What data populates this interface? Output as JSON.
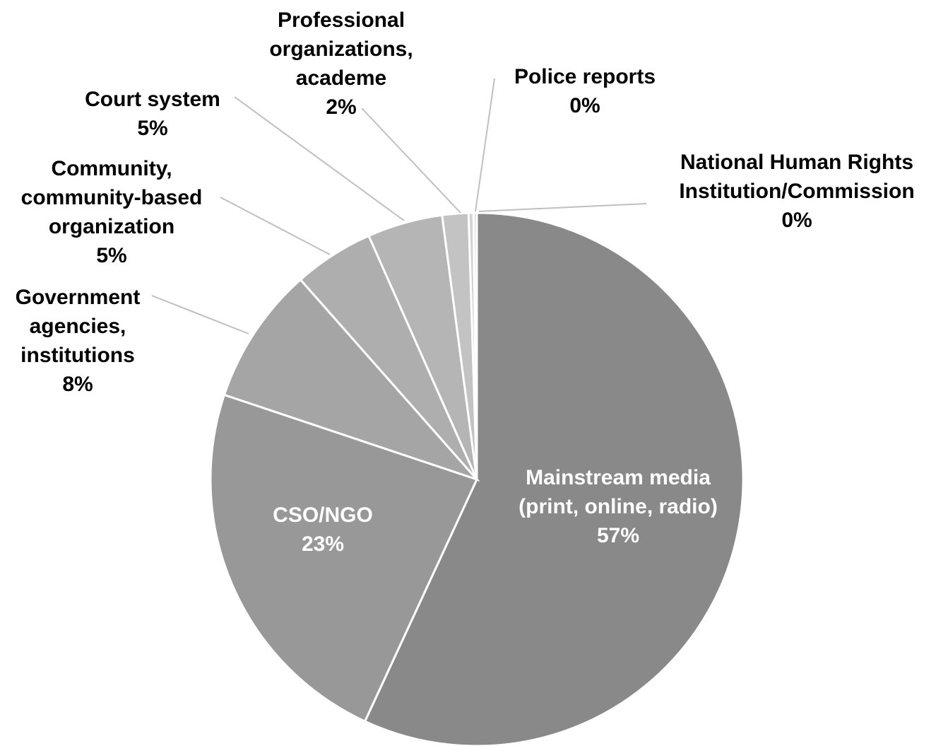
{
  "chart_data": {
    "type": "pie",
    "start_angle_deg": 0,
    "direction": "clockwise",
    "legend": "none",
    "slices": [
      {
        "key": "mainstream",
        "lines": [
          "Mainstream media",
          "(print, online, radio)"
        ],
        "percent_label": "57%",
        "value": 57.3,
        "color": "#898989"
      },
      {
        "key": "cso",
        "lines": [
          "CSO/NGO"
        ],
        "percent_label": "23%",
        "value": 23.4,
        "color": "#989898"
      },
      {
        "key": "government",
        "lines": [
          "Government",
          "agencies,",
          "institutions"
        ],
        "percent_label": "8%",
        "value": 8.4,
        "color": "#a5a5a5"
      },
      {
        "key": "community",
        "lines": [
          "Community,",
          "community-based",
          "organization"
        ],
        "percent_label": "5%",
        "value": 4.9,
        "color": "#aeaeae"
      },
      {
        "key": "court",
        "lines": [
          "Court system"
        ],
        "percent_label": "5%",
        "value": 4.6,
        "color": "#b5b5b5"
      },
      {
        "key": "professional",
        "lines": [
          "Professional",
          "organizations,",
          "academe"
        ],
        "percent_label": "2%",
        "value": 1.6,
        "color": "#c3c3c3"
      },
      {
        "key": "police",
        "lines": [
          "Police reports"
        ],
        "percent_label": "0%",
        "value": 0.3,
        "color": "#d3d3d3"
      },
      {
        "key": "nhri",
        "lines": [
          "National Human Rights",
          "Institution/Commission"
        ],
        "percent_label": "0%",
        "value": 0.2,
        "color": "#e0e0e0"
      }
    ]
  }
}
